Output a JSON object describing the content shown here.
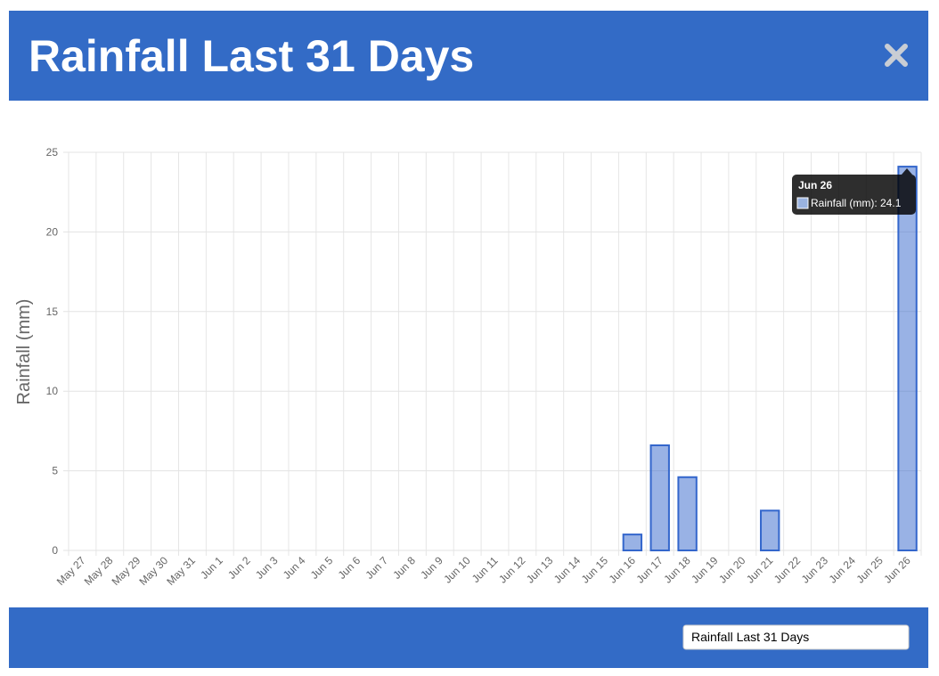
{
  "header": {
    "title": "Rainfall Last 31 Days"
  },
  "chart_data": {
    "type": "bar",
    "y_label": "Rainfall (mm)",
    "categories": [
      "May 27",
      "May 28",
      "May 29",
      "May 30",
      "May 31",
      "Jun 1",
      "Jun 2",
      "Jun 3",
      "Jun 4",
      "Jun 5",
      "Jun 6",
      "Jun 7",
      "Jun 8",
      "Jun 9",
      "Jun 10",
      "Jun 11",
      "Jun 12",
      "Jun 13",
      "Jun 14",
      "Jun 15",
      "Jun 16",
      "Jun 17",
      "Jun 18",
      "Jun 19",
      "Jun 20",
      "Jun 21",
      "Jun 22",
      "Jun 23",
      "Jun 24",
      "Jun 25",
      "Jun 26"
    ],
    "values": [
      0,
      0,
      0,
      0,
      0,
      0,
      0,
      0,
      0,
      0,
      0,
      0,
      0,
      0,
      0,
      0,
      0,
      0,
      0,
      0,
      1.0,
      6.6,
      4.6,
      0,
      0,
      2.5,
      0,
      0,
      0,
      0,
      24.1
    ],
    "color": "#3366cc",
    "ylim": [
      0,
      25
    ],
    "yticks": [
      0,
      5,
      10,
      15,
      20,
      25
    ],
    "grid": true
  },
  "tooltip": {
    "title": "Jun 26",
    "label": "Rainfall (mm): 24.1"
  },
  "footer": {
    "select": "Rainfall Last 31 Days"
  }
}
